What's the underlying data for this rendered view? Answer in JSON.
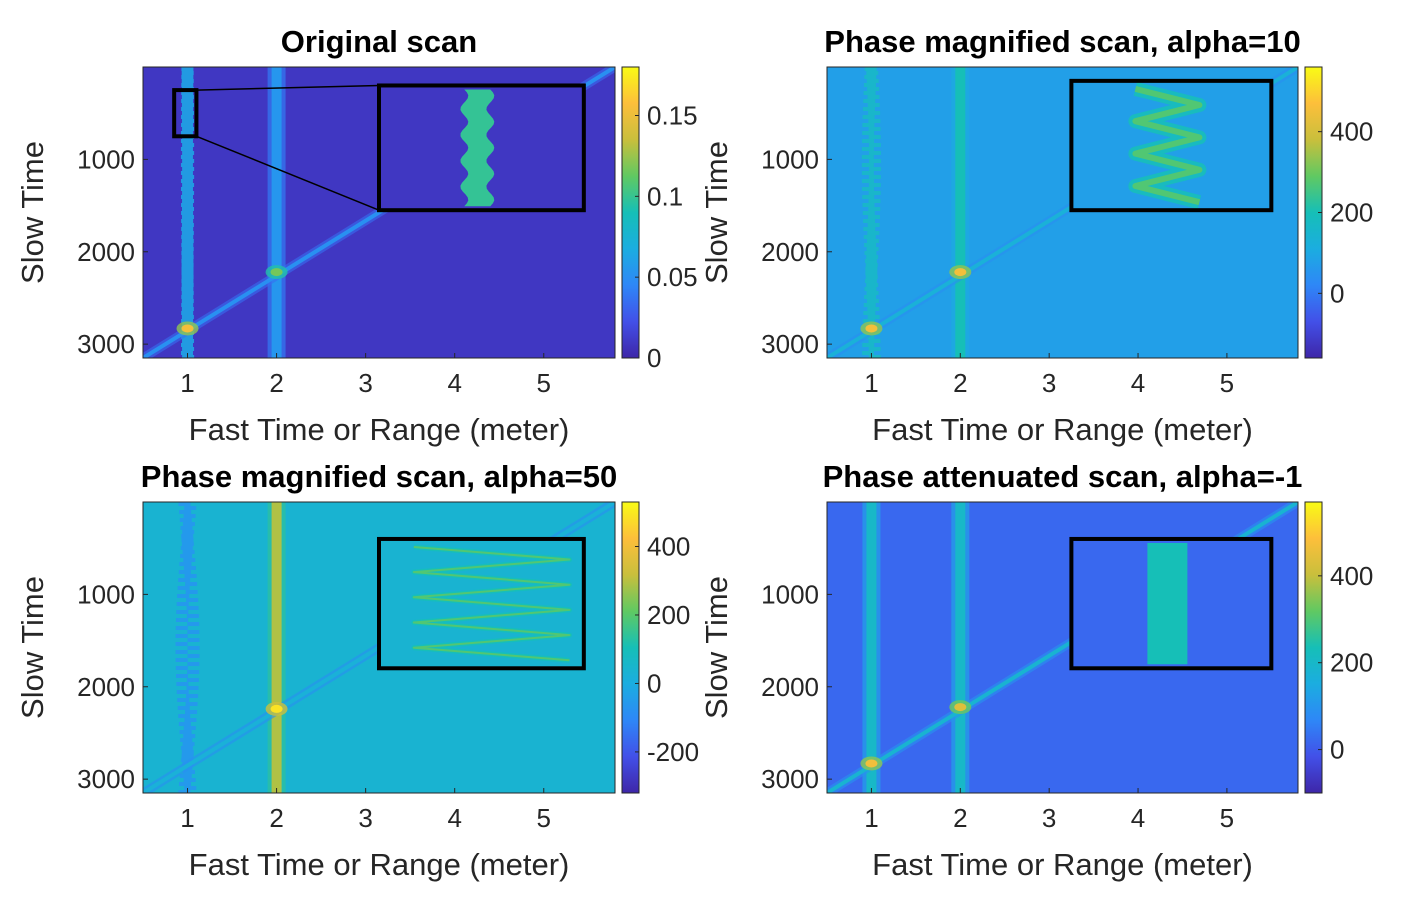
{
  "colormap": "parula",
  "colors": {
    "parula_stops": [
      "#3e26a8",
      "#4250e8",
      "#2e87f7",
      "#1bade0",
      "#16bfb7",
      "#60c962",
      "#c9bf3c",
      "#fdbf3b",
      "#f9fb15"
    ],
    "inset_frame": "#000000",
    "axes_frame": "#262626"
  },
  "chart_data": [
    {
      "type": "heatmap",
      "title": "Original scan",
      "xlabel": "Fast Time or Range (meter)",
      "ylabel": "Slow Time",
      "xlim": [
        0.5,
        5.8
      ],
      "ylim": [
        0,
        3150
      ],
      "y_reversed": true,
      "xticks": [
        1,
        2,
        3,
        4,
        5
      ],
      "yticks": [
        1000,
        2000,
        3000
      ],
      "clim": [
        0,
        0.18
      ],
      "cticks": [
        0,
        0.05,
        0.1,
        0.15
      ],
      "ctick_labels": [
        "0",
        "0.05",
        "0.1",
        "0.15"
      ],
      "vertical_lines": [
        {
          "x": 1.0,
          "level": 0.35,
          "wobble": 0.01
        },
        {
          "x": 2.0,
          "level": 0.3,
          "wobble": 0.0
        }
      ],
      "diagonal": {
        "x0": 0.5,
        "y0": 3150,
        "x1": 5.8,
        "y1": 0,
        "level": 0.28
      },
      "hotspots": [
        {
          "x": 1.0,
          "y": 2830,
          "level": 0.85
        },
        {
          "x": 2.0,
          "y": 2220,
          "level": 0.65
        }
      ],
      "background_level": 0.05,
      "inset": {
        "x": [
          3.15,
          5.45
        ],
        "y": [
          200,
          1550
        ],
        "pattern": "wavy",
        "source_box": {
          "x": [
            0.85,
            1.1
          ],
          "y": [
            250,
            750
          ]
        }
      }
    },
    {
      "type": "heatmap",
      "title": "Phase magnified scan, alpha=10",
      "xlabel": "Fast Time or Range (meter)",
      "ylabel": "Slow Time",
      "xlim": [
        0.5,
        5.8
      ],
      "ylim": [
        0,
        3150
      ],
      "y_reversed": true,
      "xticks": [
        1,
        2,
        3,
        4,
        5
      ],
      "yticks": [
        1000,
        2000,
        3000
      ],
      "clim": [
        -160,
        560
      ],
      "cticks": [
        0,
        200,
        400
      ],
      "ctick_labels": [
        "0",
        "200",
        "400"
      ],
      "vertical_lines": [
        {
          "x": 1.0,
          "level": 0.45,
          "wobble": 0.06
        },
        {
          "x": 2.0,
          "level": 0.5,
          "wobble": 0.0
        }
      ],
      "diagonal": {
        "x0": 0.5,
        "y0": 3150,
        "x1": 5.8,
        "y1": 0,
        "level": 0.4
      },
      "hotspots": [
        {
          "x": 1.0,
          "y": 2830,
          "level": 0.85
        },
        {
          "x": 2.0,
          "y": 2220,
          "level": 0.85
        }
      ],
      "background_level": 0.33,
      "inset": {
        "x": [
          3.25,
          5.5
        ],
        "y": [
          150,
          1550
        ],
        "pattern": "zigzag"
      }
    },
    {
      "type": "heatmap",
      "title": "Phase magnified scan, alpha=50",
      "xlabel": "Fast Time or Range (meter)",
      "ylabel": "Slow Time",
      "xlim": [
        0.5,
        5.8
      ],
      "ylim": [
        0,
        3150
      ],
      "y_reversed": true,
      "xticks": [
        1,
        2,
        3,
        4,
        5
      ],
      "yticks": [
        1000,
        2000,
        3000
      ],
      "clim": [
        -320,
        530
      ],
      "cticks": [
        -200,
        0,
        200,
        400
      ],
      "ctick_labels": [
        "-200",
        "0",
        "200",
        "400"
      ],
      "vertical_lines": [
        {
          "x": 1.0,
          "level": 0.3,
          "wobble": 0.1
        },
        {
          "x": 2.0,
          "level": 0.72,
          "wobble": 0.0
        }
      ],
      "diagonal": {
        "x0": 0.5,
        "y0": 3150,
        "x1": 5.8,
        "y1": 0,
        "level": 0.4
      },
      "hotspots": [
        {
          "x": 2.0,
          "y": 2240,
          "level": 0.95
        }
      ],
      "background_level": 0.42,
      "inset": {
        "x": [
          3.15,
          5.45
        ],
        "y": [
          400,
          1800
        ],
        "pattern": "zigzag-wide"
      }
    },
    {
      "type": "heatmap",
      "title": "Phase attenuated scan, alpha=-1",
      "xlabel": "Fast Time or Range (meter)",
      "ylabel": "Slow Time",
      "xlim": [
        0.5,
        5.8
      ],
      "ylim": [
        0,
        3150
      ],
      "y_reversed": true,
      "xticks": [
        1,
        2,
        3,
        4,
        5
      ],
      "yticks": [
        1000,
        2000,
        3000
      ],
      "clim": [
        -100,
        570
      ],
      "cticks": [
        0,
        200,
        400
      ],
      "ctick_labels": [
        "0",
        "200",
        "400"
      ],
      "vertical_lines": [
        {
          "x": 1.0,
          "level": 0.45,
          "wobble": 0.0
        },
        {
          "x": 2.0,
          "level": 0.45,
          "wobble": 0.0
        }
      ],
      "diagonal": {
        "x0": 0.5,
        "y0": 3150,
        "x1": 5.8,
        "y1": 0,
        "level": 0.42
      },
      "hotspots": [
        {
          "x": 1.0,
          "y": 2830,
          "level": 0.85
        },
        {
          "x": 2.0,
          "y": 2220,
          "level": 0.8
        }
      ],
      "background_level": 0.18,
      "inset": {
        "x": [
          3.25,
          5.5
        ],
        "y": [
          400,
          1800
        ],
        "pattern": "band"
      }
    }
  ]
}
